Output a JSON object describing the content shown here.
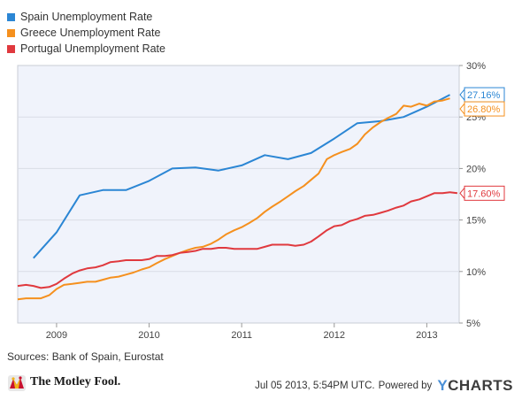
{
  "chart_data": {
    "type": "line",
    "y_axis_side": "right",
    "ylim": [
      5,
      30
    ],
    "yticks": [
      5,
      10,
      15,
      20,
      25,
      30
    ],
    "ytick_labels": [
      "5%",
      "10%",
      "15%",
      "20%",
      "25%",
      "30%"
    ],
    "xlim": [
      2008.58,
      2013.35
    ],
    "xticks": [
      2009,
      2010,
      2011,
      2012,
      2013
    ],
    "xtick_labels": [
      "2009",
      "2010",
      "2011",
      "2012",
      "2013"
    ],
    "grid": "horizontal",
    "legend_position": "top-left",
    "series": [
      {
        "name": "Spain Unemployment Rate",
        "color": "#2b86d4",
        "end_label": "27.16%",
        "points": [
          [
            2008.75,
            11.3
          ],
          [
            2009.0,
            13.8
          ],
          [
            2009.25,
            17.4
          ],
          [
            2009.5,
            17.9
          ],
          [
            2009.75,
            17.9
          ],
          [
            2010.0,
            18.8
          ],
          [
            2010.25,
            20.0
          ],
          [
            2010.5,
            20.1
          ],
          [
            2010.75,
            19.8
          ],
          [
            2011.0,
            20.3
          ],
          [
            2011.25,
            21.3
          ],
          [
            2011.5,
            20.9
          ],
          [
            2011.75,
            21.5
          ],
          [
            2012.0,
            22.9
          ],
          [
            2012.25,
            24.4
          ],
          [
            2012.5,
            24.6
          ],
          [
            2012.75,
            25.0
          ],
          [
            2013.0,
            26.0
          ],
          [
            2013.25,
            27.16
          ]
        ]
      },
      {
        "name": "Greece Unemployment Rate",
        "color": "#f5901e",
        "end_label": "26.80%",
        "points": [
          [
            2008.58,
            7.3
          ],
          [
            2008.67,
            7.4
          ],
          [
            2008.75,
            7.4
          ],
          [
            2008.83,
            7.4
          ],
          [
            2008.92,
            7.7
          ],
          [
            2009.0,
            8.3
          ],
          [
            2009.08,
            8.7
          ],
          [
            2009.17,
            8.8
          ],
          [
            2009.25,
            8.9
          ],
          [
            2009.33,
            9.0
          ],
          [
            2009.42,
            9.0
          ],
          [
            2009.5,
            9.2
          ],
          [
            2009.58,
            9.4
          ],
          [
            2009.67,
            9.5
          ],
          [
            2009.75,
            9.7
          ],
          [
            2009.83,
            9.9
          ],
          [
            2009.92,
            10.2
          ],
          [
            2010.0,
            10.4
          ],
          [
            2010.08,
            10.8
          ],
          [
            2010.17,
            11.2
          ],
          [
            2010.25,
            11.5
          ],
          [
            2010.33,
            11.8
          ],
          [
            2010.42,
            12.1
          ],
          [
            2010.5,
            12.3
          ],
          [
            2010.58,
            12.4
          ],
          [
            2010.67,
            12.7
          ],
          [
            2010.75,
            13.1
          ],
          [
            2010.83,
            13.6
          ],
          [
            2010.92,
            14.0
          ],
          [
            2011.0,
            14.3
          ],
          [
            2011.08,
            14.7
          ],
          [
            2011.17,
            15.2
          ],
          [
            2011.25,
            15.8
          ],
          [
            2011.33,
            16.3
          ],
          [
            2011.42,
            16.8
          ],
          [
            2011.5,
            17.3
          ],
          [
            2011.58,
            17.8
          ],
          [
            2011.67,
            18.3
          ],
          [
            2011.75,
            18.9
          ],
          [
            2011.83,
            19.5
          ],
          [
            2011.92,
            20.9
          ],
          [
            2012.0,
            21.3
          ],
          [
            2012.08,
            21.6
          ],
          [
            2012.17,
            21.9
          ],
          [
            2012.25,
            22.4
          ],
          [
            2012.33,
            23.3
          ],
          [
            2012.42,
            24.0
          ],
          [
            2012.5,
            24.5
          ],
          [
            2012.58,
            24.9
          ],
          [
            2012.67,
            25.3
          ],
          [
            2012.75,
            26.1
          ],
          [
            2012.83,
            26.0
          ],
          [
            2012.92,
            26.3
          ],
          [
            2013.0,
            26.1
          ],
          [
            2013.08,
            26.5
          ],
          [
            2013.17,
            26.6
          ],
          [
            2013.25,
            26.8
          ]
        ]
      },
      {
        "name": "Portugal Unemployment Rate",
        "color": "#e0393e",
        "end_label": "17.60%",
        "points": [
          [
            2008.58,
            8.6
          ],
          [
            2008.67,
            8.7
          ],
          [
            2008.75,
            8.6
          ],
          [
            2008.83,
            8.4
          ],
          [
            2008.92,
            8.5
          ],
          [
            2009.0,
            8.8
          ],
          [
            2009.08,
            9.3
          ],
          [
            2009.17,
            9.8
          ],
          [
            2009.25,
            10.1
          ],
          [
            2009.33,
            10.3
          ],
          [
            2009.42,
            10.4
          ],
          [
            2009.5,
            10.6
          ],
          [
            2009.58,
            10.9
          ],
          [
            2009.67,
            11.0
          ],
          [
            2009.75,
            11.1
          ],
          [
            2009.83,
            11.1
          ],
          [
            2009.92,
            11.1
          ],
          [
            2010.0,
            11.2
          ],
          [
            2010.08,
            11.5
          ],
          [
            2010.17,
            11.5
          ],
          [
            2010.25,
            11.6
          ],
          [
            2010.33,
            11.8
          ],
          [
            2010.42,
            11.9
          ],
          [
            2010.5,
            12.0
          ],
          [
            2010.58,
            12.2
          ],
          [
            2010.67,
            12.2
          ],
          [
            2010.75,
            12.3
          ],
          [
            2010.83,
            12.3
          ],
          [
            2010.92,
            12.2
          ],
          [
            2011.0,
            12.2
          ],
          [
            2011.08,
            12.2
          ],
          [
            2011.17,
            12.2
          ],
          [
            2011.25,
            12.4
          ],
          [
            2011.33,
            12.6
          ],
          [
            2011.42,
            12.6
          ],
          [
            2011.5,
            12.6
          ],
          [
            2011.58,
            12.5
          ],
          [
            2011.67,
            12.6
          ],
          [
            2011.75,
            12.9
          ],
          [
            2011.83,
            13.4
          ],
          [
            2011.92,
            14.0
          ],
          [
            2012.0,
            14.4
          ],
          [
            2012.08,
            14.5
          ],
          [
            2012.17,
            14.9
          ],
          [
            2012.25,
            15.1
          ],
          [
            2012.33,
            15.4
          ],
          [
            2012.42,
            15.5
          ],
          [
            2012.5,
            15.7
          ],
          [
            2012.58,
            15.9
          ],
          [
            2012.67,
            16.2
          ],
          [
            2012.75,
            16.4
          ],
          [
            2012.83,
            16.8
          ],
          [
            2012.92,
            17.0
          ],
          [
            2013.0,
            17.3
          ],
          [
            2013.08,
            17.6
          ],
          [
            2013.17,
            17.6
          ],
          [
            2013.25,
            17.7
          ],
          [
            2013.33,
            17.6
          ]
        ]
      }
    ]
  },
  "footer": {
    "sources": "Sources: Bank of Spain, Eurostat",
    "brand": "The Motley Fool.",
    "timestamp": "Jul 05 2013, 5:54PM UTC.",
    "powered_by": "Powered by",
    "ycharts_y": "Y",
    "ycharts_rest": "CHARTS"
  }
}
